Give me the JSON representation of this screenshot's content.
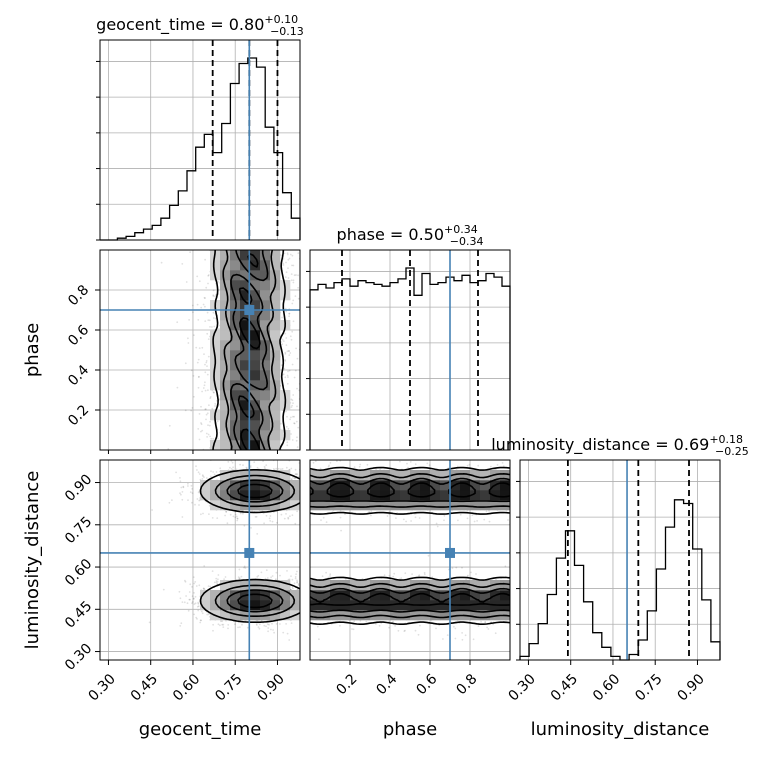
{
  "chart_data": {
    "type": "corner",
    "parameters": [
      "geocent_time",
      "phase",
      "luminosity_distance"
    ],
    "truth": {
      "geocent_time": 0.8,
      "phase": 0.7,
      "luminosity_distance": 0.65
    },
    "titles": [
      {
        "param": "geocent_time",
        "median": "0.80",
        "plus": "+0.10",
        "minus": "−0.13",
        "text": "geocent_time = 0.80"
      },
      {
        "param": "phase",
        "median": "0.50",
        "plus": "+0.34",
        "minus": "−0.34",
        "text": "phase = 0.50"
      },
      {
        "param": "luminosity_distance",
        "median": "0.69",
        "plus": "+0.18",
        "minus": "−0.25",
        "text": "luminosity_distance = 0.69"
      }
    ],
    "ranges": {
      "geocent_time": [
        0.27,
        0.98
      ],
      "phase": [
        0.0,
        1.0
      ],
      "luminosity_distance": [
        0.27,
        0.98
      ]
    },
    "ticks": {
      "geocent_time": {
        "values": [
          0.3,
          0.45,
          0.6,
          0.75,
          0.9
        ],
        "labels": [
          "0.30",
          "0.45",
          "0.60",
          "0.75",
          "0.90"
        ]
      },
      "phase": {
        "values": [
          0.2,
          0.4,
          0.6,
          0.8
        ],
        "labels": [
          "0.2",
          "0.4",
          "0.6",
          "0.8"
        ]
      },
      "luminosity_distance": {
        "values": [
          0.3,
          0.45,
          0.6,
          0.75,
          0.9
        ],
        "labels": [
          "0.30",
          "0.45",
          "0.60",
          "0.75",
          "0.90"
        ]
      }
    },
    "quantiles": {
      "geocent_time": [
        0.67,
        0.8,
        0.9
      ],
      "phase": [
        0.16,
        0.5,
        0.84
      ],
      "luminosity_distance": [
        0.44,
        0.69,
        0.87
      ]
    },
    "histograms": {
      "geocent_time": [
        0,
        0,
        0.01,
        0.02,
        0.04,
        0.06,
        0.08,
        0.12,
        0.19,
        0.27,
        0.38,
        0.51,
        0.58,
        0.48,
        0.64,
        0.86,
        0.97,
        1.0,
        0.95,
        0.62,
        0.48,
        0.26,
        0.12
      ],
      "phase": [
        0.88,
        0.91,
        0.89,
        0.92,
        0.94,
        0.9,
        0.93,
        0.92,
        0.91,
        0.9,
        0.92,
        0.94,
        1.0,
        0.85,
        0.97,
        0.91,
        0.92,
        0.95,
        0.93,
        0.96,
        0.92,
        0.93,
        0.97,
        0.95,
        0.9
      ],
      "luminosity_distance": [
        0.02,
        0.09,
        0.2,
        0.36,
        0.56,
        0.71,
        0.52,
        0.32,
        0.15,
        0.07,
        0.02,
        0.0,
        0.03,
        0.11,
        0.27,
        0.5,
        0.73,
        0.88,
        0.86,
        0.61,
        0.33,
        0.1
      ]
    },
    "joint_2d": [
      {
        "x": "geocent_time",
        "y": "phase",
        "pattern": "x-band",
        "center_x": 0.8,
        "width_x": 0.06
      },
      {
        "x": "geocent_time",
        "y": "luminosity_distance",
        "pattern": "two-blobs",
        "center_x": 0.82,
        "centers_y": [
          0.48,
          0.87
        ]
      },
      {
        "x": "phase",
        "y": "luminosity_distance",
        "pattern": "two-bands",
        "centers_y": [
          0.48,
          0.87
        ]
      }
    ],
    "grid": true,
    "legend": "none"
  }
}
